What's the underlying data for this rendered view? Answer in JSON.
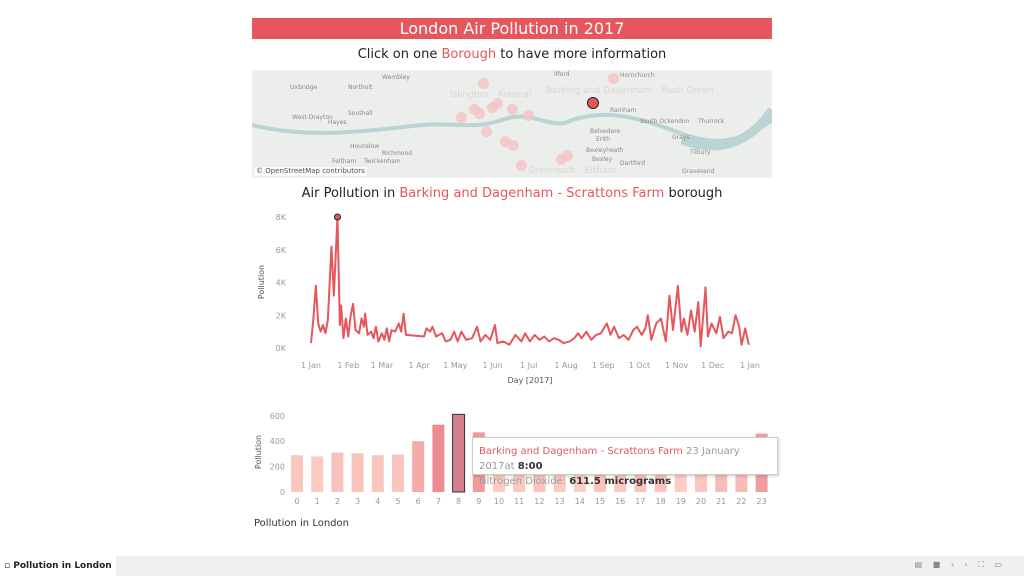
{
  "header": {
    "title": "London Air Pollution in 2017",
    "subtitle_pre": "Click on one ",
    "subtitle_hl": "Borough",
    "subtitle_post": " to have more information"
  },
  "map": {
    "labels": [
      "Uxbridge",
      "Northolt",
      "Wembley",
      "Southall",
      "Hayes",
      "West Drayton",
      "Hounslow",
      "Richmond",
      "Feltham",
      "Twickenham",
      "Ilford",
      "Hornchurch",
      "Rainham",
      "South Ockendon",
      "Thurrock",
      "Grays",
      "Belvedere",
      "Erith",
      "Bexleyheath",
      "Bexley",
      "Dartford",
      "Gravesend",
      "Tilbury"
    ],
    "highlight_labels": [
      "Islington - Arsenal",
      "Barking and Dagenham - Rush Green",
      "Greenwich - Eltham"
    ],
    "attribution": "© OpenStreetMap contributors"
  },
  "line_title": {
    "pre": "Air Pollution in ",
    "hl": "Barking and Dagenham - Scrattons Farm",
    "post": " borough"
  },
  "colors": {
    "accent": "#e5575c",
    "selected_bar": "#d4808f"
  },
  "chart_data": [
    {
      "type": "line",
      "xlabel": "Day [2017]",
      "ylabel": "Pollution",
      "ylim": [
        0,
        8000
      ],
      "yticks": [
        "0K",
        "2K",
        "4K",
        "6K",
        "8K"
      ],
      "ytick_values": [
        0,
        2000,
        4000,
        6000,
        8000
      ],
      "xticks": [
        "1 Jan",
        "1 Feb",
        "1 Mar",
        "1 Apr",
        "1 May",
        "1 Jun",
        "1 Jul",
        "1 Aug",
        "1 Sep",
        "1 Oct",
        "1 Nov",
        "1 Dec",
        "1 Jan"
      ],
      "xtick_dates": [
        "2017-01-01",
        "2017-02-01",
        "2017-03-01",
        "2017-04-01",
        "2017-05-01",
        "2017-06-01",
        "2017-07-01",
        "2017-08-01",
        "2017-09-01",
        "2017-10-01",
        "2017-11-01",
        "2017-12-01",
        "2018-01-01"
      ],
      "highlight": {
        "date": "2017-01-23",
        "value": 8000
      },
      "points": [
        [
          "2017-01-01",
          300
        ],
        [
          "2017-01-03",
          1800
        ],
        [
          "2017-01-05",
          3800
        ],
        [
          "2017-01-07",
          1500
        ],
        [
          "2017-01-09",
          1000
        ],
        [
          "2017-01-11",
          1400
        ],
        [
          "2017-01-13",
          900
        ],
        [
          "2017-01-15",
          1700
        ],
        [
          "2017-01-18",
          6200
        ],
        [
          "2017-01-20",
          3200
        ],
        [
          "2017-01-23",
          8000
        ],
        [
          "2017-01-25",
          1400
        ],
        [
          "2017-01-26",
          2600
        ],
        [
          "2017-01-28",
          600
        ],
        [
          "2017-01-30",
          1800
        ],
        [
          "2017-02-01",
          700
        ],
        [
          "2017-02-03",
          2000
        ],
        [
          "2017-02-05",
          2700
        ],
        [
          "2017-02-07",
          1100
        ],
        [
          "2017-02-10",
          900
        ],
        [
          "2017-02-12",
          1800
        ],
        [
          "2017-02-14",
          1300
        ],
        [
          "2017-02-15",
          2100
        ],
        [
          "2017-02-17",
          800
        ],
        [
          "2017-02-20",
          1000
        ],
        [
          "2017-02-22",
          600
        ],
        [
          "2017-02-24",
          1300
        ],
        [
          "2017-02-26",
          400
        ],
        [
          "2017-03-01",
          900
        ],
        [
          "2017-03-03",
          500
        ],
        [
          "2017-03-05",
          1200
        ],
        [
          "2017-03-07",
          400
        ],
        [
          "2017-03-09",
          1100
        ],
        [
          "2017-03-12",
          1000
        ],
        [
          "2017-03-15",
          1500
        ],
        [
          "2017-03-17",
          1000
        ],
        [
          "2017-03-19",
          2100
        ],
        [
          "2017-03-21",
          800
        ],
        [
          "2017-04-05",
          700
        ],
        [
          "2017-04-07",
          1200
        ],
        [
          "2017-04-10",
          1000
        ],
        [
          "2017-04-12",
          1300
        ],
        [
          "2017-04-15",
          700
        ],
        [
          "2017-04-20",
          900
        ],
        [
          "2017-04-23",
          400
        ],
        [
          "2017-04-27",
          500
        ],
        [
          "2017-04-30",
          1000
        ],
        [
          "2017-05-03",
          400
        ],
        [
          "2017-05-06",
          1000
        ],
        [
          "2017-05-10",
          500
        ],
        [
          "2017-05-15",
          600
        ],
        [
          "2017-05-19",
          1300
        ],
        [
          "2017-05-22",
          400
        ],
        [
          "2017-05-26",
          800
        ],
        [
          "2017-05-30",
          500
        ],
        [
          "2017-06-03",
          1400
        ],
        [
          "2017-06-05",
          300
        ],
        [
          "2017-06-10",
          400
        ],
        [
          "2017-06-15",
          200
        ],
        [
          "2017-06-20",
          800
        ],
        [
          "2017-06-25",
          400
        ],
        [
          "2017-06-28",
          900
        ],
        [
          "2017-07-02",
          400
        ],
        [
          "2017-07-06",
          800
        ],
        [
          "2017-07-10",
          500
        ],
        [
          "2017-07-14",
          700
        ],
        [
          "2017-07-18",
          400
        ],
        [
          "2017-07-22",
          600
        ],
        [
          "2017-07-26",
          500
        ],
        [
          "2017-07-30",
          300
        ],
        [
          "2017-08-04",
          400
        ],
        [
          "2017-08-08",
          600
        ],
        [
          "2017-08-11",
          900
        ],
        [
          "2017-08-14",
          600
        ],
        [
          "2017-08-18",
          1000
        ],
        [
          "2017-08-22",
          500
        ],
        [
          "2017-08-26",
          800
        ],
        [
          "2017-08-30",
          900
        ],
        [
          "2017-09-04",
          1500
        ],
        [
          "2017-09-07",
          800
        ],
        [
          "2017-09-10",
          1300
        ],
        [
          "2017-09-14",
          600
        ],
        [
          "2017-09-18",
          800
        ],
        [
          "2017-09-22",
          500
        ],
        [
          "2017-09-26",
          1100
        ],
        [
          "2017-09-29",
          1300
        ],
        [
          "2017-10-03",
          800
        ],
        [
          "2017-10-06",
          1200
        ],
        [
          "2017-10-08",
          2000
        ],
        [
          "2017-10-11",
          500
        ],
        [
          "2017-10-15",
          1500
        ],
        [
          "2017-10-19",
          1800
        ],
        [
          "2017-10-23",
          400
        ],
        [
          "2017-10-26",
          3200
        ],
        [
          "2017-10-29",
          1100
        ],
        [
          "2017-11-02",
          3800
        ],
        [
          "2017-11-05",
          1000
        ],
        [
          "2017-11-07",
          1800
        ],
        [
          "2017-11-10",
          800
        ],
        [
          "2017-11-13",
          2300
        ],
        [
          "2017-11-16",
          1000
        ],
        [
          "2017-11-19",
          2800
        ],
        [
          "2017-11-21",
          100
        ],
        [
          "2017-11-25",
          3700
        ],
        [
          "2017-11-27",
          700
        ],
        [
          "2017-11-30",
          1500
        ],
        [
          "2017-12-04",
          900
        ],
        [
          "2017-12-07",
          1900
        ],
        [
          "2017-12-10",
          600
        ],
        [
          "2017-12-14",
          1000
        ],
        [
          "2017-12-17",
          900
        ],
        [
          "2017-12-20",
          2000
        ],
        [
          "2017-12-23",
          1300
        ],
        [
          "2017-12-25",
          200
        ],
        [
          "2017-12-28",
          1200
        ],
        [
          "2017-12-31",
          200
        ]
      ]
    },
    {
      "type": "bar",
      "ylabel": "Pollution",
      "ylim": [
        0,
        650
      ],
      "yticks": [
        "0",
        "200",
        "400",
        "600"
      ],
      "ytick_values": [
        0,
        200,
        400,
        600
      ],
      "categories": [
        "0",
        "1",
        "2",
        "3",
        "4",
        "5",
        "6",
        "7",
        "8",
        "9",
        "10",
        "11",
        "12",
        "13",
        "14",
        "15",
        "16",
        "17",
        "18",
        "19",
        "20",
        "21",
        "22",
        "23"
      ],
      "values": [
        290,
        280,
        310,
        305,
        290,
        295,
        400,
        530,
        611.5,
        470,
        270,
        280,
        300,
        270,
        250,
        300,
        280,
        300,
        300,
        270,
        290,
        330,
        330,
        460
      ],
      "selected_category": "8"
    }
  ],
  "tooltip": {
    "station": "Barking and Dagenham - Scrattons Farm",
    "date": "23 January 2017at",
    "time": "8:00",
    "measure_label": "Nitrogen Dioxide:",
    "measure_value": "611.5 micrograms"
  },
  "footer": {
    "title": "Pollution in London"
  },
  "bottombar": {
    "tab": "Pollution in London",
    "controls": "▤ ■ ‹ › ⛶ ▭"
  }
}
